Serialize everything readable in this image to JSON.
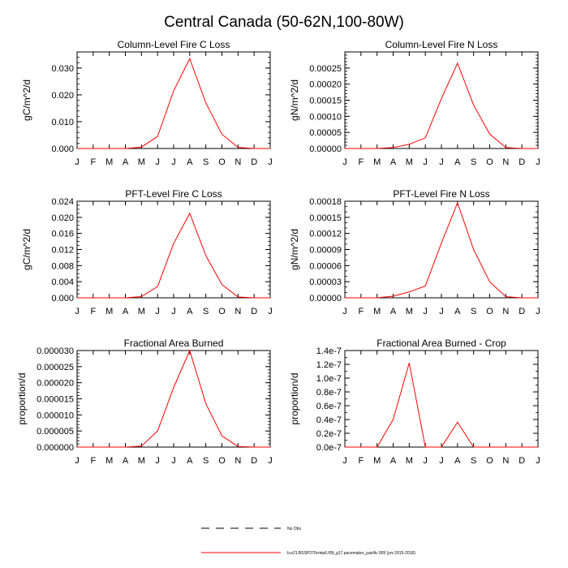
{
  "figure": {
    "title": "Central Canada (50-62N,100-80W)",
    "months": [
      "J",
      "F",
      "M",
      "A",
      "M",
      "J",
      "J",
      "A",
      "S",
      "O",
      "N",
      "D",
      "J"
    ]
  },
  "colors": {
    "model": "#ff0000",
    "obs": "#000000",
    "axis": "#000000"
  },
  "chart_data": [
    {
      "type": "line",
      "title": "Column-Level Fire C Loss",
      "ylabel": "gC/m^2/d",
      "ylim": [
        0,
        0.036
      ],
      "yticks": [
        0,
        0.01,
        0.02,
        0.03
      ],
      "ytick_labels": [
        "0.000",
        "0.010",
        "0.020",
        "0.030"
      ],
      "yminor": 0.002,
      "series": [
        {
          "values": [
            0,
            0,
            0,
            0,
            0.0005,
            0.0045,
            0.0215,
            0.0335,
            0.017,
            0.0053,
            0.0004,
            0,
            0
          ]
        }
      ]
    },
    {
      "type": "line",
      "title": "Column-Level Fire N Loss",
      "ylabel": "gN/m^2/d",
      "ylim": [
        0,
        0.0003
      ],
      "yticks": [
        0,
        5e-05,
        0.0001,
        0.00015,
        0.0002,
        0.00025
      ],
      "ytick_labels": [
        "0.00000",
        "0.00005",
        "0.00010",
        "0.00015",
        "0.00020",
        "0.00025"
      ],
      "yminor": 1e-05,
      "series": [
        {
          "values": [
            0,
            0,
            0,
            3e-06,
            1.3e-05,
            3.3e-05,
            0.000155,
            0.000265,
            0.000135,
            4.5e-05,
            3e-06,
            0,
            0
          ]
        }
      ]
    },
    {
      "type": "line",
      "title": "PFT-Level Fire C Loss",
      "ylabel": "gC/m^2/d",
      "ylim": [
        0,
        0.024
      ],
      "yticks": [
        0,
        0.004,
        0.008,
        0.012,
        0.016,
        0.02,
        0.024
      ],
      "ytick_labels": [
        "0.000",
        "0.004",
        "0.008",
        "0.012",
        "0.016",
        "0.020",
        "0.024"
      ],
      "yminor": 0.001,
      "series": [
        {
          "values": [
            0,
            0,
            0,
            0,
            0.0003,
            0.0028,
            0.0135,
            0.021,
            0.0105,
            0.0033,
            0.0002,
            0,
            0
          ]
        }
      ]
    },
    {
      "type": "line",
      "title": "PFT-Level Fire N Loss",
      "ylabel": "gN/m^2/d",
      "ylim": [
        0,
        0.00018
      ],
      "yticks": [
        0,
        3e-05,
        6e-05,
        9e-05,
        0.00012,
        0.00015,
        0.00018
      ],
      "ytick_labels": [
        "0.00000",
        "0.00003",
        "0.00006",
        "0.00009",
        "0.00012",
        "0.00015",
        "0.00018"
      ],
      "yminor": 1e-05,
      "series": [
        {
          "values": [
            0,
            0,
            0,
            3e-06,
            1.1e-05,
            2.2e-05,
            0.000102,
            0.000177,
            9e-05,
            3e-05,
            2e-06,
            0,
            0
          ]
        }
      ]
    },
    {
      "type": "line",
      "title": "Fractional Area Burned",
      "ylabel": "proportion/d",
      "ylim": [
        0,
        3e-05
      ],
      "yticks": [
        0,
        5e-06,
        1e-05,
        1.5e-05,
        2e-05,
        2.5e-05,
        3e-05
      ],
      "ytick_labels": [
        "0.000000",
        "0.000005",
        "0.000010",
        "0.000015",
        "0.000020",
        "0.000025",
        "0.000030"
      ],
      "yminor": 1e-06,
      "series": [
        {
          "values": [
            0,
            0,
            0,
            0,
            3e-07,
            5e-06,
            1.85e-05,
            3e-05,
            1.35e-05,
            3.5e-06,
            2e-07,
            0,
            0
          ]
        }
      ]
    },
    {
      "type": "line",
      "title": "Fractional Area Burned - Crop",
      "ylabel": "proportion/d",
      "ylim": [
        0,
        1.4e-07
      ],
      "yticks": [
        0,
        2e-08,
        4e-08,
        6e-08,
        8e-08,
        1e-07,
        1.2e-07,
        1.4e-07
      ],
      "ytick_labels": [
        "0.0e-7",
        "0.2e-7",
        "0.4e-7",
        "0.6e-7",
        "0.8e-7",
        "1.0e-7",
        "1.2e-7",
        "1.4e-7"
      ],
      "yminor": 1e-08,
      "series": [
        {
          "values": [
            0,
            0,
            0,
            4e-08,
            1.22e-07,
            0,
            0,
            3.6e-08,
            0,
            0,
            0,
            0,
            0
          ]
        }
      ]
    }
  ],
  "legend": {
    "obs_label": "No Obs",
    "model_label": "b.e21.BSSP370cmip6.f09_g17.pacemaker_pacific.009 (yrs 2015-2018)"
  }
}
